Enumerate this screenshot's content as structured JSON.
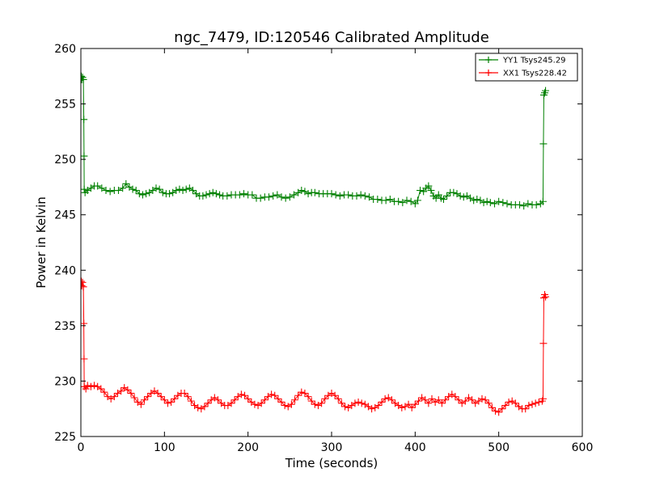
{
  "chart_data": {
    "type": "line",
    "title": "ngc_7479, ID:120546 Calibrated Amplitude",
    "xlabel": "Time (seconds)",
    "ylabel": "Power in Kelvin",
    "xlim": [
      0,
      600
    ],
    "ylim": [
      225,
      260
    ],
    "x_ticks": [
      0,
      100,
      200,
      300,
      400,
      500,
      600
    ],
    "y_ticks": [
      225,
      230,
      235,
      240,
      245,
      250,
      255,
      260
    ],
    "grid": false,
    "legend_position": "top-right",
    "series": [
      {
        "name": "YY1 Tsys245.29",
        "color": "#008000",
        "marker": "+",
        "points": [
          [
            0.5,
            257.5
          ],
          [
            1,
            257.2
          ],
          [
            2,
            257.4
          ],
          [
            3,
            257.2
          ],
          [
            3.5,
            253.6
          ],
          [
            3.8,
            250.3
          ],
          [
            4,
            247.3
          ],
          [
            5,
            247.0
          ],
          [
            8,
            247.2
          ],
          [
            12,
            247.4
          ],
          [
            16,
            247.6
          ],
          [
            20,
            247.6
          ],
          [
            25,
            247.4
          ],
          [
            30,
            247.2
          ],
          [
            35,
            247.1
          ],
          [
            40,
            247.2
          ],
          [
            45,
            247.2
          ],
          [
            50,
            247.4
          ],
          [
            54,
            247.8
          ],
          [
            58,
            247.5
          ],
          [
            62,
            247.3
          ],
          [
            66,
            247.2
          ],
          [
            70,
            246.9
          ],
          [
            74,
            246.8
          ],
          [
            78,
            246.9
          ],
          [
            82,
            247.0
          ],
          [
            86,
            247.2
          ],
          [
            90,
            247.4
          ],
          [
            94,
            247.3
          ],
          [
            98,
            247.0
          ],
          [
            102,
            246.9
          ],
          [
            106,
            246.9
          ],
          [
            110,
            247.0
          ],
          [
            114,
            247.2
          ],
          [
            118,
            247.3
          ],
          [
            122,
            247.2
          ],
          [
            126,
            247.3
          ],
          [
            130,
            247.4
          ],
          [
            134,
            247.2
          ],
          [
            138,
            246.9
          ],
          [
            142,
            246.7
          ],
          [
            146,
            246.7
          ],
          [
            150,
            246.8
          ],
          [
            154,
            246.9
          ],
          [
            158,
            247.0
          ],
          [
            162,
            246.9
          ],
          [
            166,
            246.8
          ],
          [
            170,
            246.7
          ],
          [
            175,
            246.7
          ],
          [
            180,
            246.8
          ],
          [
            185,
            246.8
          ],
          [
            190,
            246.8
          ],
          [
            195,
            246.9
          ],
          [
            200,
            246.8
          ],
          [
            205,
            246.8
          ],
          [
            210,
            246.5
          ],
          [
            215,
            246.5
          ],
          [
            220,
            246.6
          ],
          [
            225,
            246.6
          ],
          [
            230,
            246.7
          ],
          [
            235,
            246.8
          ],
          [
            240,
            246.6
          ],
          [
            245,
            246.5
          ],
          [
            250,
            246.6
          ],
          [
            255,
            246.8
          ],
          [
            260,
            247.0
          ],
          [
            264,
            247.2
          ],
          [
            268,
            247.1
          ],
          [
            272,
            246.9
          ],
          [
            276,
            247.0
          ],
          [
            280,
            247.0
          ],
          [
            285,
            246.9
          ],
          [
            290,
            246.9
          ],
          [
            295,
            246.9
          ],
          [
            300,
            246.9
          ],
          [
            305,
            246.8
          ],
          [
            310,
            246.7
          ],
          [
            315,
            246.8
          ],
          [
            320,
            246.8
          ],
          [
            325,
            246.7
          ],
          [
            330,
            246.7
          ],
          [
            335,
            246.8
          ],
          [
            340,
            246.7
          ],
          [
            345,
            246.6
          ],
          [
            350,
            246.4
          ],
          [
            355,
            246.4
          ],
          [
            360,
            246.3
          ],
          [
            365,
            246.3
          ],
          [
            370,
            246.4
          ],
          [
            375,
            246.2
          ],
          [
            380,
            246.2
          ],
          [
            385,
            246.1
          ],
          [
            390,
            246.3
          ],
          [
            395,
            246.2
          ],
          [
            400,
            246.0
          ],
          [
            403,
            246.3
          ],
          [
            406,
            247.2
          ],
          [
            410,
            247.1
          ],
          [
            413,
            247.4
          ],
          [
            416,
            247.6
          ],
          [
            419,
            247.2
          ],
          [
            422,
            246.7
          ],
          [
            425,
            246.5
          ],
          [
            428,
            246.8
          ],
          [
            431,
            246.5
          ],
          [
            434,
            246.4
          ],
          [
            438,
            246.7
          ],
          [
            442,
            247.0
          ],
          [
            446,
            247.0
          ],
          [
            450,
            246.9
          ],
          [
            454,
            246.7
          ],
          [
            458,
            246.6
          ],
          [
            462,
            246.7
          ],
          [
            466,
            246.5
          ],
          [
            470,
            246.3
          ],
          [
            474,
            246.4
          ],
          [
            478,
            246.3
          ],
          [
            482,
            246.1
          ],
          [
            486,
            246.2
          ],
          [
            490,
            246.1
          ],
          [
            495,
            246.0
          ],
          [
            500,
            246.2
          ],
          [
            505,
            246.1
          ],
          [
            510,
            246.0
          ],
          [
            515,
            245.9
          ],
          [
            520,
            245.9
          ],
          [
            525,
            245.9
          ],
          [
            530,
            245.8
          ],
          [
            535,
            246.0
          ],
          [
            540,
            245.9
          ],
          [
            545,
            245.9
          ],
          [
            550,
            246.0
          ],
          [
            553,
            246.2
          ],
          [
            553.5,
            251.4
          ],
          [
            554,
            255.8
          ],
          [
            555,
            256.0
          ],
          [
            556,
            256.2
          ]
        ]
      },
      {
        "name": "XX1 Tsys228.42",
        "color": "#ff0000",
        "marker": "+",
        "points": [
          [
            0.5,
            239.0
          ],
          [
            1,
            238.6
          ],
          [
            2,
            238.9
          ],
          [
            3,
            238.5
          ],
          [
            3.5,
            235.2
          ],
          [
            3.8,
            232.0
          ],
          [
            4,
            229.5
          ],
          [
            6,
            229.3
          ],
          [
            8,
            229.6
          ],
          [
            12,
            229.5
          ],
          [
            16,
            229.6
          ],
          [
            20,
            229.5
          ],
          [
            24,
            229.3
          ],
          [
            28,
            229.0
          ],
          [
            32,
            228.6
          ],
          [
            36,
            228.4
          ],
          [
            40,
            228.6
          ],
          [
            44,
            228.9
          ],
          [
            48,
            229.1
          ],
          [
            52,
            229.4
          ],
          [
            56,
            229.2
          ],
          [
            60,
            228.9
          ],
          [
            64,
            228.5
          ],
          [
            68,
            228.1
          ],
          [
            72,
            227.9
          ],
          [
            76,
            228.3
          ],
          [
            80,
            228.6
          ],
          [
            84,
            228.9
          ],
          [
            88,
            229.1
          ],
          [
            92,
            228.9
          ],
          [
            96,
            228.6
          ],
          [
            100,
            228.3
          ],
          [
            104,
            228.0
          ],
          [
            108,
            228.1
          ],
          [
            112,
            228.4
          ],
          [
            116,
            228.7
          ],
          [
            120,
            228.9
          ],
          [
            124,
            228.9
          ],
          [
            128,
            228.6
          ],
          [
            132,
            228.2
          ],
          [
            136,
            227.8
          ],
          [
            140,
            227.6
          ],
          [
            144,
            227.5
          ],
          [
            148,
            227.7
          ],
          [
            152,
            228.0
          ],
          [
            156,
            228.3
          ],
          [
            160,
            228.5
          ],
          [
            164,
            228.3
          ],
          [
            168,
            228.0
          ],
          [
            172,
            227.8
          ],
          [
            176,
            227.8
          ],
          [
            180,
            228.0
          ],
          [
            184,
            228.3
          ],
          [
            188,
            228.6
          ],
          [
            192,
            228.8
          ],
          [
            196,
            228.7
          ],
          [
            200,
            228.4
          ],
          [
            204,
            228.1
          ],
          [
            208,
            227.9
          ],
          [
            212,
            227.8
          ],
          [
            216,
            228.0
          ],
          [
            220,
            228.3
          ],
          [
            224,
            228.6
          ],
          [
            228,
            228.8
          ],
          [
            232,
            228.7
          ],
          [
            236,
            228.4
          ],
          [
            240,
            228.1
          ],
          [
            244,
            227.8
          ],
          [
            248,
            227.7
          ],
          [
            252,
            227.9
          ],
          [
            256,
            228.3
          ],
          [
            260,
            228.7
          ],
          [
            264,
            229.0
          ],
          [
            268,
            228.9
          ],
          [
            272,
            228.6
          ],
          [
            276,
            228.2
          ],
          [
            280,
            227.9
          ],
          [
            284,
            227.8
          ],
          [
            288,
            228.0
          ],
          [
            292,
            228.4
          ],
          [
            296,
            228.7
          ],
          [
            300,
            228.9
          ],
          [
            304,
            228.7
          ],
          [
            308,
            228.4
          ],
          [
            312,
            228.0
          ],
          [
            316,
            227.7
          ],
          [
            320,
            227.6
          ],
          [
            324,
            227.8
          ],
          [
            328,
            228.0
          ],
          [
            332,
            228.1
          ],
          [
            336,
            228.0
          ],
          [
            340,
            227.9
          ],
          [
            344,
            227.7
          ],
          [
            348,
            227.5
          ],
          [
            352,
            227.6
          ],
          [
            356,
            227.8
          ],
          [
            360,
            228.1
          ],
          [
            364,
            228.4
          ],
          [
            368,
            228.5
          ],
          [
            372,
            228.3
          ],
          [
            376,
            228.0
          ],
          [
            380,
            227.8
          ],
          [
            384,
            227.6
          ],
          [
            388,
            227.7
          ],
          [
            392,
            227.9
          ],
          [
            396,
            227.6
          ],
          [
            400,
            227.9
          ],
          [
            404,
            228.2
          ],
          [
            408,
            228.5
          ],
          [
            412,
            228.3
          ],
          [
            416,
            228.0
          ],
          [
            420,
            228.4
          ],
          [
            424,
            228.1
          ],
          [
            428,
            228.3
          ],
          [
            432,
            228.0
          ],
          [
            436,
            228.3
          ],
          [
            440,
            228.6
          ],
          [
            444,
            228.8
          ],
          [
            448,
            228.6
          ],
          [
            452,
            228.3
          ],
          [
            456,
            228.0
          ],
          [
            460,
            228.2
          ],
          [
            464,
            228.5
          ],
          [
            468,
            228.3
          ],
          [
            472,
            228.0
          ],
          [
            476,
            228.2
          ],
          [
            480,
            228.4
          ],
          [
            484,
            228.3
          ],
          [
            488,
            228.0
          ],
          [
            492,
            227.6
          ],
          [
            496,
            227.3
          ],
          [
            500,
            227.2
          ],
          [
            504,
            227.5
          ],
          [
            508,
            227.8
          ],
          [
            512,
            228.1
          ],
          [
            516,
            228.2
          ],
          [
            520,
            228.0
          ],
          [
            524,
            227.7
          ],
          [
            528,
            227.5
          ],
          [
            532,
            227.5
          ],
          [
            536,
            227.8
          ],
          [
            540,
            227.9
          ],
          [
            544,
            228.0
          ],
          [
            548,
            228.1
          ],
          [
            552,
            228.2
          ],
          [
            553,
            228.4
          ],
          [
            553.5,
            233.4
          ],
          [
            554,
            237.5
          ],
          [
            555,
            237.8
          ],
          [
            556,
            237.6
          ]
        ]
      }
    ]
  }
}
